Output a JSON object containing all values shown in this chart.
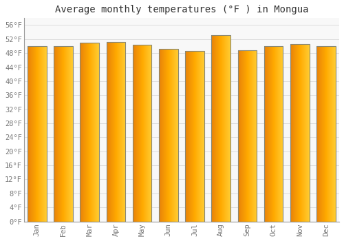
{
  "title": "Average monthly temperatures (°F ) in Mongua",
  "months": [
    "Jan",
    "Feb",
    "Mar",
    "Apr",
    "May",
    "Jun",
    "Jul",
    "Aug",
    "Sep",
    "Oct",
    "Nov",
    "Dec"
  ],
  "values": [
    50.0,
    50.0,
    51.0,
    51.1,
    50.4,
    49.3,
    48.6,
    53.2,
    48.9,
    50.0,
    50.5,
    50.0
  ],
  "bar_color_left": "#E8820A",
  "bar_color_mid": "#FFAA00",
  "bar_color_right": "#FFCC33",
  "bar_edge_color": "#888866",
  "background_color": "#FFFFFF",
  "plot_bg_color": "#F8F8F8",
  "grid_color": "#DDDDDD",
  "ylabel_ticks": [
    "0°F",
    "4°F",
    "8°F",
    "12°F",
    "16°F",
    "20°F",
    "24°F",
    "28°F",
    "32°F",
    "36°F",
    "40°F",
    "44°F",
    "48°F",
    "52°F",
    "56°F"
  ],
  "ytick_values": [
    0,
    4,
    8,
    12,
    16,
    20,
    24,
    28,
    32,
    36,
    40,
    44,
    48,
    52,
    56
  ],
  "ylim": [
    0,
    58
  ],
  "title_fontsize": 10,
  "tick_fontsize": 7.5,
  "font_family": "monospace"
}
